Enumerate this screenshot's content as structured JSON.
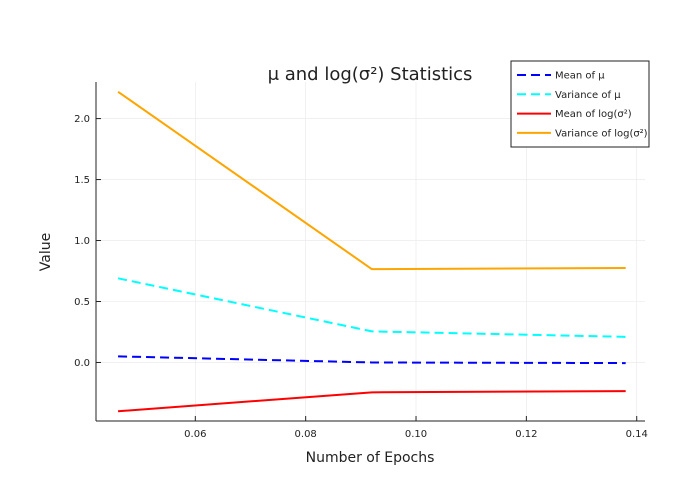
{
  "chart_data": {
    "type": "line",
    "title": "μ and log(σ²) Statistics",
    "xlabel": "Number of Epochs",
    "ylabel": "Value",
    "x": [
      0.046,
      0.092,
      0.138
    ],
    "xlim": [
      0.042,
      0.1415
    ],
    "ylim": [
      -0.48,
      2.3
    ],
    "xticks": [
      0.06,
      0.08,
      0.1,
      0.12,
      0.14
    ],
    "xtick_labels": [
      "0.06",
      "0.08",
      "0.10",
      "0.12",
      "0.14"
    ],
    "yticks": [
      0.0,
      0.5,
      1.0,
      1.5,
      2.0
    ],
    "ytick_labels": [
      "0.0",
      "0.5",
      "1.0",
      "1.5",
      "2.0"
    ],
    "grid": true,
    "legend_position": "top-right",
    "series": [
      {
        "name": "Mean of μ",
        "values": [
          0.05,
          0.0,
          -0.005
        ],
        "color": "#0000ff",
        "dash": "dashed"
      },
      {
        "name": "Variance of μ",
        "values": [
          0.69,
          0.255,
          0.21
        ],
        "color": "#00ffff",
        "dash": "dashed"
      },
      {
        "name": "Mean of log(σ²)",
        "values": [
          -0.4,
          -0.245,
          -0.235
        ],
        "color": "#ff0000",
        "dash": "solid"
      },
      {
        "name": "Variance of log(σ²)",
        "values": [
          2.22,
          0.765,
          0.775
        ],
        "color": "#ffa500",
        "dash": "solid"
      }
    ]
  }
}
